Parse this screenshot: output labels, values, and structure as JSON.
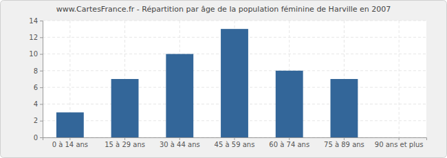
{
  "chart_data": {
    "type": "bar",
    "title": "www.CartesFrance.fr - Répartition par âge de la population féminine de Harville en 2007",
    "categories": [
      "0 à 14 ans",
      "15 à 29 ans",
      "30 à 44 ans",
      "45 à 59 ans",
      "60 à 74 ans",
      "75 à 89 ans",
      "90 ans et plus"
    ],
    "values": [
      3,
      7,
      10,
      13,
      8,
      7,
      0
    ],
    "color": "#336699",
    "ylim": [
      0,
      14
    ],
    "yticks": [
      0,
      2,
      4,
      6,
      8,
      10,
      12,
      14
    ],
    "grid": true
  }
}
